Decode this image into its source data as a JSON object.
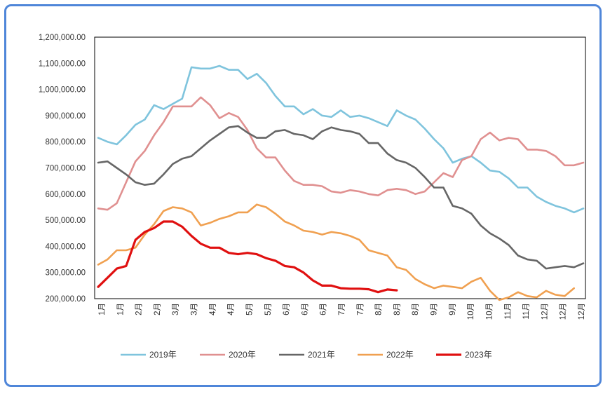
{
  "chart_data": {
    "type": "line",
    "title": "",
    "xlabel": "",
    "ylabel": "",
    "ylim": [
      200000,
      1200000
    ],
    "yticks": [
      200000,
      300000,
      400000,
      500000,
      600000,
      700000,
      800000,
      900000,
      1000000,
      1100000,
      1200000
    ],
    "ytick_labels": [
      "200,000.00",
      "300,000.00",
      "400,000.00",
      "500,000.00",
      "600,000.00",
      "700,000.00",
      "800,000.00",
      "900,000.00",
      "1,000,000.00",
      "1,100,000.00",
      "1,200,000.00"
    ],
    "xtick_labels": [
      "1月",
      "1月",
      "2月",
      "2月",
      "3月",
      "3月",
      "4月",
      "4月",
      "5月",
      "5月",
      "6月",
      "6月",
      "6月",
      "7月",
      "7月",
      "8月",
      "8月",
      "8月",
      "9月",
      "9月",
      "10月",
      "10月",
      "11月",
      "11月",
      "12月",
      "12月",
      "12月"
    ],
    "grid": false,
    "legend_position": "bottom",
    "x_points": 53,
    "series": [
      {
        "name": "2019年",
        "color": "#7fc4dd",
        "values": [
          815000,
          800000,
          790000,
          825000,
          865000,
          885000,
          940000,
          925000,
          945000,
          965000,
          1085000,
          1080000,
          1080000,
          1090000,
          1075000,
          1075000,
          1040000,
          1060000,
          1025000,
          975000,
          935000,
          935000,
          905000,
          925000,
          900000,
          895000,
          920000,
          895000,
          900000,
          890000,
          875000,
          860000,
          920000,
          900000,
          885000,
          850000,
          810000,
          775000,
          720000,
          735000,
          745000,
          720000,
          690000,
          685000,
          660000,
          625000,
          625000,
          590000,
          570000,
          555000,
          545000,
          530000,
          545000
        ]
      },
      {
        "name": "2020年",
        "color": "#e09090",
        "values": [
          545000,
          540000,
          565000,
          645000,
          725000,
          765000,
          825000,
          875000,
          935000,
          935000,
          935000,
          970000,
          940000,
          890000,
          910000,
          895000,
          845000,
          775000,
          740000,
          740000,
          690000,
          650000,
          635000,
          635000,
          630000,
          610000,
          605000,
          615000,
          610000,
          600000,
          595000,
          615000,
          620000,
          615000,
          600000,
          610000,
          645000,
          680000,
          665000,
          730000,
          745000,
          810000,
          835000,
          805000,
          815000,
          810000,
          770000,
          770000,
          765000,
          745000,
          710000,
          710000,
          720000
        ]
      },
      {
        "name": "2021年",
        "color": "#666666",
        "values": [
          720000,
          725000,
          700000,
          675000,
          645000,
          635000,
          640000,
          675000,
          715000,
          735000,
          745000,
          775000,
          805000,
          830000,
          855000,
          860000,
          835000,
          815000,
          815000,
          840000,
          845000,
          830000,
          825000,
          810000,
          840000,
          855000,
          845000,
          840000,
          830000,
          795000,
          795000,
          755000,
          730000,
          720000,
          700000,
          665000,
          625000,
          625000,
          555000,
          545000,
          525000,
          480000,
          450000,
          430000,
          405000,
          365000,
          350000,
          345000,
          315000,
          320000,
          325000,
          320000,
          335000
        ]
      },
      {
        "name": "2022年",
        "color": "#f0a050",
        "values": [
          330000,
          350000,
          385000,
          385000,
          395000,
          445000,
          485000,
          535000,
          550000,
          545000,
          530000,
          480000,
          490000,
          505000,
          515000,
          530000,
          530000,
          560000,
          550000,
          525000,
          495000,
          480000,
          460000,
          455000,
          445000,
          455000,
          450000,
          440000,
          425000,
          385000,
          375000,
          365000,
          320000,
          310000,
          275000,
          255000,
          240000,
          250000,
          245000,
          240000,
          265000,
          280000,
          230000,
          195000,
          205000,
          225000,
          210000,
          205000,
          230000,
          215000,
          210000,
          240000,
          null
        ]
      },
      {
        "name": "2023年",
        "color": "#e01010",
        "values": [
          245000,
          280000,
          315000,
          325000,
          425000,
          455000,
          470000,
          495000,
          495000,
          475000,
          440000,
          410000,
          395000,
          395000,
          375000,
          370000,
          375000,
          370000,
          355000,
          345000,
          325000,
          320000,
          300000,
          270000,
          250000,
          250000,
          240000,
          238000,
          238000,
          236000,
          225000,
          235000,
          232000,
          null,
          null,
          null,
          null,
          null,
          null,
          null,
          null,
          null,
          null,
          null,
          null,
          null,
          null,
          null,
          null,
          null,
          null,
          null,
          null
        ]
      }
    ]
  }
}
